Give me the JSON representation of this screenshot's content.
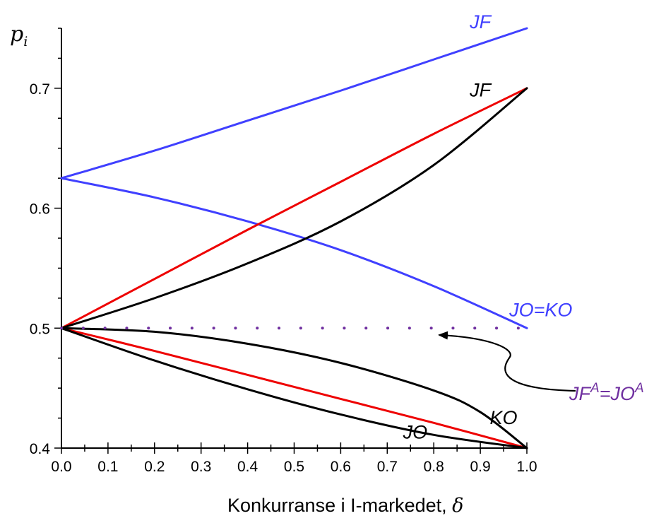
{
  "chart_data": {
    "type": "line",
    "ylabel_main": "p",
    "ylabel_sub": "i",
    "xlabel_main": "Konkurranse i I-markedet, ",
    "xlabel_symbol": "δ",
    "xlim": [
      0,
      1
    ],
    "ylim": [
      0.4,
      0.75
    ],
    "x_ticks": [
      "0.0",
      "0.1",
      "0.2",
      "0.3",
      "0.4",
      "0.5",
      "0.6",
      "0.7",
      "0.8",
      "0.9",
      "1.0"
    ],
    "y_ticks": [
      "0.4",
      "0.5",
      "0.6",
      "0.7"
    ],
    "colors": {
      "blue": "#4040ff",
      "red": "#ee0000",
      "black": "#000000",
      "purple": "#7030a0"
    },
    "series": [
      {
        "color": "blue",
        "x": [
          0,
          0.2,
          0.4,
          0.6,
          0.8,
          1.0
        ],
        "y": [
          0.625,
          0.648,
          0.673,
          0.698,
          0.724,
          0.75
        ]
      },
      {
        "color": "blue",
        "x": [
          0,
          0.2,
          0.4,
          0.6,
          0.8,
          1.0
        ],
        "y": [
          0.625,
          0.609,
          0.589,
          0.565,
          0.535,
          0.5
        ]
      },
      {
        "color": "red",
        "x": [
          0,
          0.2,
          0.4,
          0.6,
          0.8,
          1.0
        ],
        "y": [
          0.5,
          0.541,
          0.582,
          0.622,
          0.662,
          0.7
        ]
      },
      {
        "color": "black",
        "x": [
          0,
          0.2,
          0.4,
          0.6,
          0.8,
          1.0
        ],
        "y": [
          0.5,
          0.525,
          0.554,
          0.589,
          0.636,
          0.7
        ]
      },
      {
        "color": "red",
        "x": [
          0,
          0.2,
          0.4,
          0.6,
          0.8,
          1.0
        ],
        "y": [
          0.5,
          0.481,
          0.461,
          0.441,
          0.421,
          0.4
        ]
      },
      {
        "color": "black",
        "x": [
          0,
          0.2,
          0.4,
          0.6,
          0.8,
          1.0
        ],
        "y": [
          0.5,
          0.473,
          0.449,
          0.428,
          0.411,
          0.4
        ]
      },
      {
        "color": "black",
        "x": [
          0,
          0.2,
          0.4,
          0.6,
          0.8,
          0.9,
          1.0
        ],
        "y": [
          0.5,
          0.497,
          0.487,
          0.471,
          0.448,
          0.43,
          0.4
        ]
      },
      {
        "color": "purple",
        "dotted": true,
        "x": [
          0,
          1.0
        ],
        "y": [
          0.5,
          0.5
        ]
      }
    ],
    "annotations": [
      {
        "text": "JF",
        "color": "blue",
        "x": 0.9,
        "y": 0.75
      },
      {
        "text": "JF",
        "color": "black",
        "x": 0.9,
        "y": 0.693
      },
      {
        "text": "JO=KO",
        "color": "blue",
        "x": 1.03,
        "y": 0.51
      },
      {
        "text": "KO",
        "color": "black",
        "x": 0.95,
        "y": 0.42
      },
      {
        "text": "JO",
        "color": "black",
        "x": 0.76,
        "y": 0.408
      }
    ],
    "callout": {
      "part1": "JF",
      "sup1": "A",
      "part2": "=JO",
      "sup2": "A",
      "color": "purple"
    }
  }
}
